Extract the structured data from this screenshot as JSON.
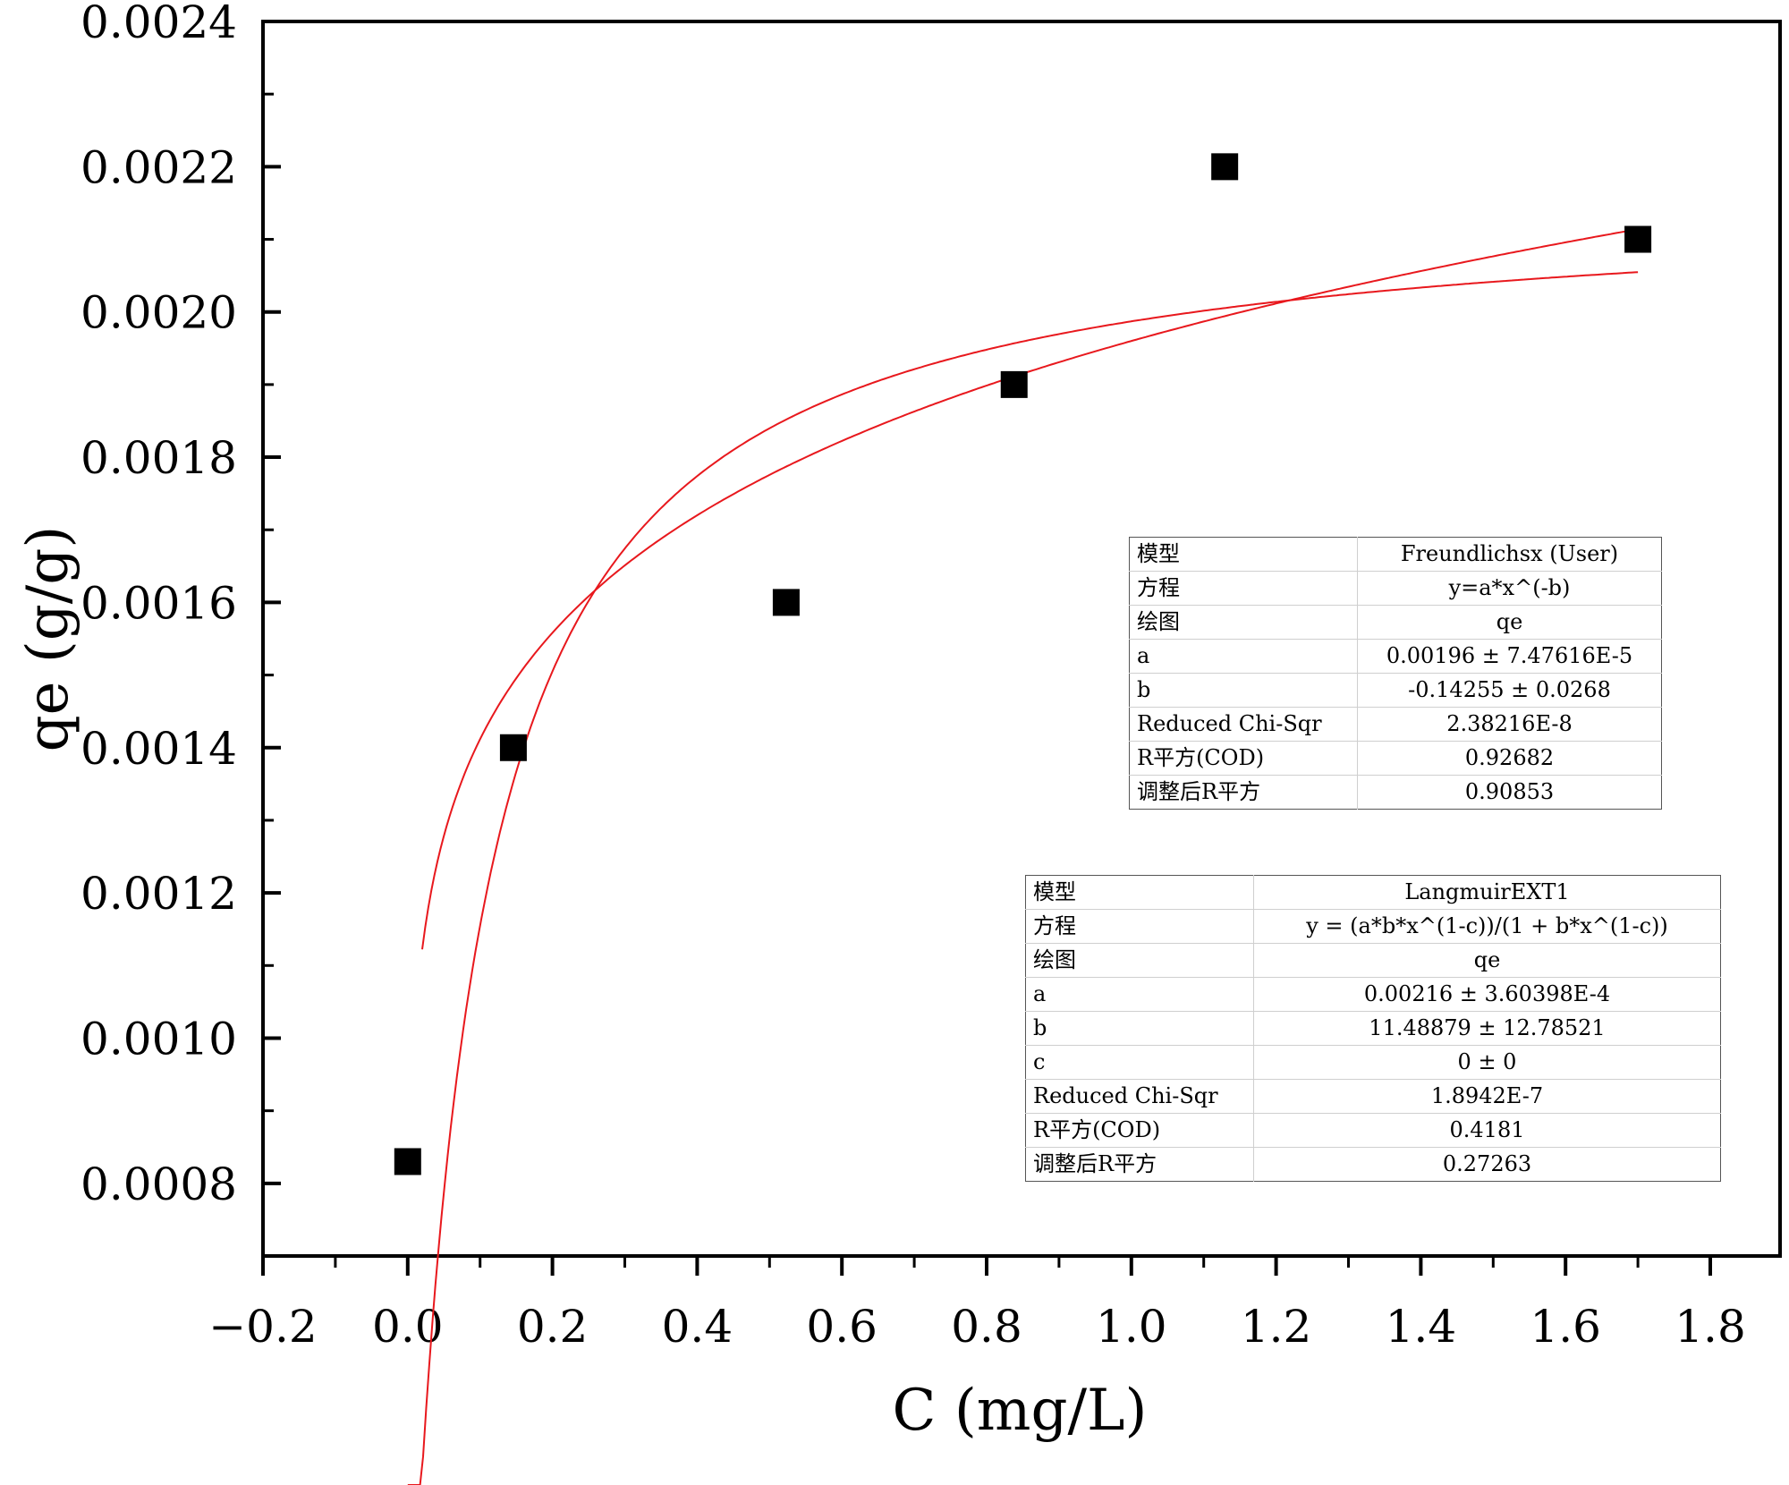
{
  "chart_data": {
    "type": "scatter",
    "title": "",
    "xlabel": "C (mg/L)",
    "ylabel": "qe (g/g)",
    "xlim": [
      -0.2,
      1.9
    ],
    "ylim": [
      0.0007,
      0.0024
    ],
    "xticks": [
      -0.2,
      0.0,
      0.2,
      0.4,
      0.6,
      0.8,
      1.0,
      1.2,
      1.4,
      1.6,
      1.8
    ],
    "xtick_labels": [
      "−0.2",
      "0.0",
      "0.2",
      "0.4",
      "0.6",
      "0.8",
      "1.0",
      "1.2",
      "1.4",
      "1.6",
      "1.8"
    ],
    "yticks": [
      0.0008,
      0.001,
      0.0012,
      0.0014,
      0.0016,
      0.0018,
      0.002,
      0.0022,
      0.0024
    ],
    "ytick_labels": [
      "0.0008",
      "0.0010",
      "0.0012",
      "0.0014",
      "0.0016",
      "0.0018",
      "0.0020",
      "0.0022",
      "0.0024"
    ],
    "points": {
      "name": "qe",
      "x": [
        0.0,
        0.146,
        0.523,
        0.838,
        1.129,
        1.7
      ],
      "y": [
        0.00083,
        0.0014,
        0.0016,
        0.0019,
        0.0022,
        0.0021
      ]
    },
    "fits": [
      {
        "name": "Freundlichsx",
        "model": "power",
        "a": 0.00196,
        "b": -0.14255,
        "x_range": [
          0.02,
          1.7
        ]
      },
      {
        "name": "LangmuirEXT1",
        "model": "langmuir",
        "a": 0.00216,
        "b": 11.48879,
        "c": 0,
        "x_range": [
          0.0,
          1.7
        ]
      }
    ],
    "colors": {
      "points": "#000000",
      "fit": "#e8181d",
      "axis": "#000000"
    }
  },
  "tables": [
    {
      "rows": [
        {
          "key": "模型",
          "value": "Freundlichsx (User)"
        },
        {
          "key": "方程",
          "value": "y=a*x^(-b)"
        },
        {
          "key": "绘图",
          "value": "qe"
        },
        {
          "key": "a",
          "value": "0.00196 ± 7.47616E-5"
        },
        {
          "key": "b",
          "value": "-0.14255 ± 0.0268"
        },
        {
          "key": "Reduced Chi-Sqr",
          "value": "2.38216E-8"
        },
        {
          "key": "R平方(COD)",
          "value": "0.92682"
        },
        {
          "key": "调整后R平方",
          "value": "0.90853"
        }
      ]
    },
    {
      "rows": [
        {
          "key": "模型",
          "value": "LangmuirEXT1"
        },
        {
          "key": "方程",
          "value": "y = (a*b*x^(1-c))/(1 + b*x^(1-c))"
        },
        {
          "key": "绘图",
          "value": "qe"
        },
        {
          "key": "a",
          "value": "0.00216 ± 3.60398E-4"
        },
        {
          "key": "b",
          "value": "11.48879 ± 12.78521"
        },
        {
          "key": "c",
          "value": "0 ± 0"
        },
        {
          "key": "Reduced Chi-Sqr",
          "value": "1.8942E-7"
        },
        {
          "key": "R平方(COD)",
          "value": "0.4181"
        },
        {
          "key": "调整后R平方",
          "value": "0.27263"
        }
      ]
    }
  ]
}
